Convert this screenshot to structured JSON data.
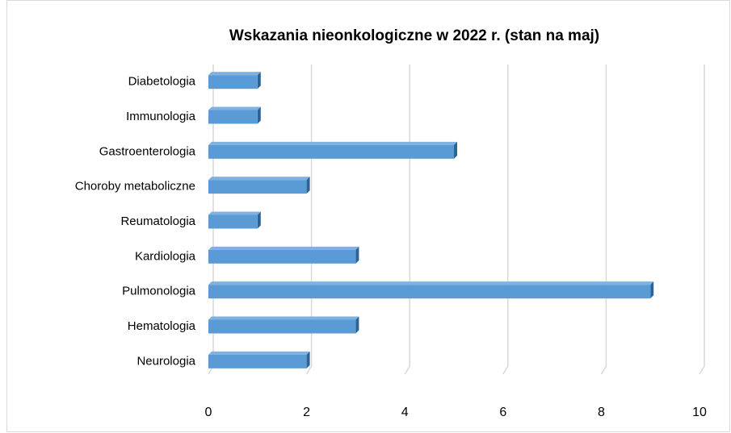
{
  "chart_data": {
    "type": "bar",
    "orientation": "horizontal",
    "title": "Wskazania nieonkologiczne w 2022 r. (stan na maj)",
    "categories": [
      "Diabetologia",
      "Immunologia",
      "Gastroenterologia",
      "Choroby metaboliczne",
      "Reumatologia",
      "Kardiologia",
      "Pulmonologia",
      "Hematologia",
      "Neurologia"
    ],
    "values": [
      1,
      1,
      5,
      2,
      1,
      3,
      9,
      3,
      2
    ],
    "color": "#5b9bd5",
    "xlim": [
      0,
      10
    ],
    "xticks": [
      0,
      2,
      4,
      6,
      8,
      10
    ],
    "grid": true
  }
}
